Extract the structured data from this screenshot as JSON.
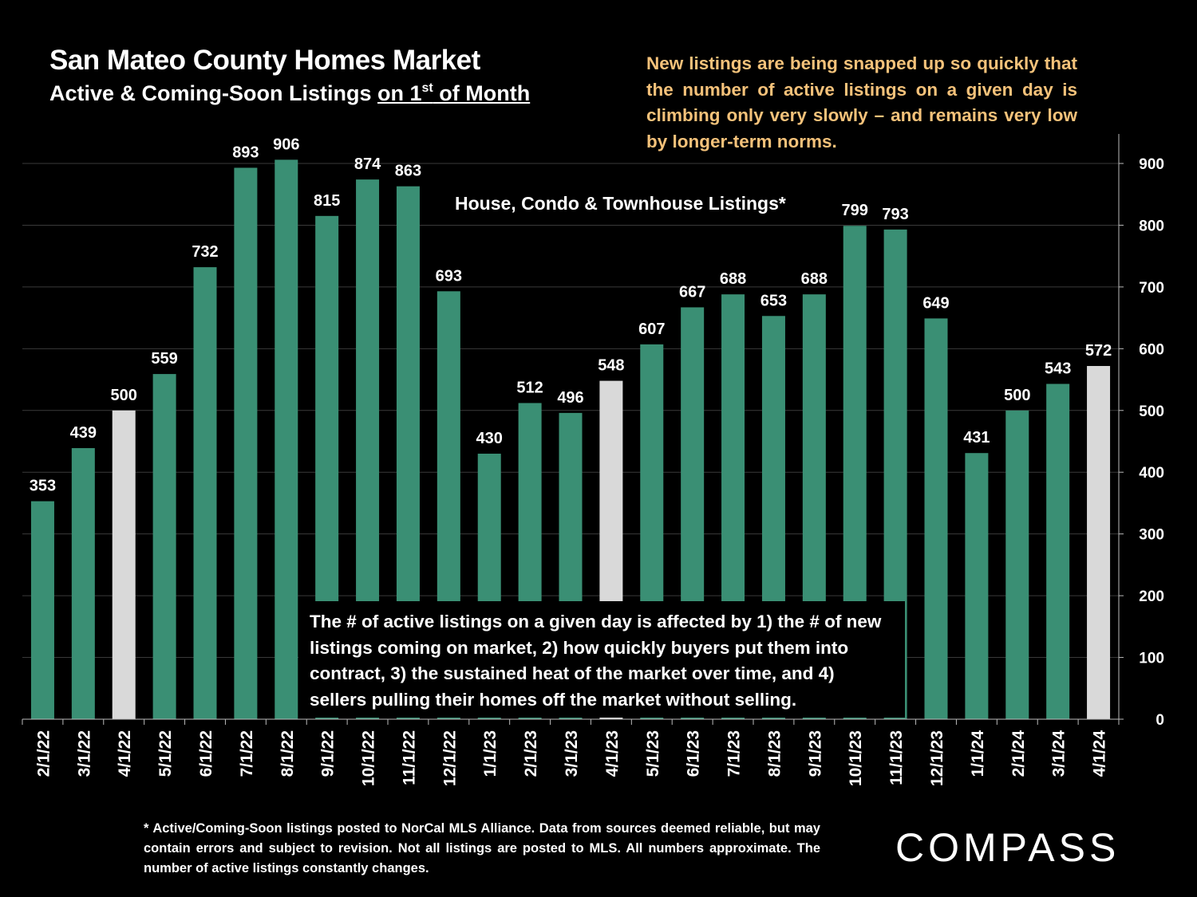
{
  "header": {
    "title": "San Mateo County Homes Market",
    "subtitle_prefix": "Active & Coming-Soon Listings ",
    "subtitle_underlined_a": "on 1",
    "subtitle_sup": "st",
    "subtitle_underlined_b": " of Month"
  },
  "notes": {
    "top_right": "New listings are being snapped up so quickly that the number of active listings on a given day is climbing only very slowly – and remains very low by longer-term norms.",
    "box": "The # of active listings on a given day is affected by 1) the # of new listings coming on market, 2) how quickly buyers put them into contract, 3) the sustained heat of the market over time, and 4) sellers pulling their homes off the market without selling.",
    "footnote": "* Active/Coming-Soon listings posted to NorCal MLS Alliance.  Data from sources deemed reliable, but may contain errors and subject to revision.  Not all listings are posted to MLS. All numbers approximate. The number of active listings constantly changes."
  },
  "logo": {
    "text": "COMPASS"
  },
  "colors": {
    "bar": "#3a8f74",
    "highlight_bar": "#d9d9d9",
    "gridline": "#3a3a3a",
    "background": "#000000",
    "note_text": "#f5c27a"
  },
  "chart_data": {
    "type": "bar",
    "series_label": "House, Condo & Townhouse Listings*",
    "categories": [
      "2/1/22",
      "3/1/22",
      "4/1/22",
      "5/1/22",
      "6/1/22",
      "7/1/22",
      "8/1/22",
      "9/1/22",
      "10/1/22",
      "11/1/22",
      "12/1/22",
      "1/1/23",
      "2/1/23",
      "3/1/23",
      "4/1/23",
      "5/1/23",
      "6/1/23",
      "7/1/23",
      "8/1/23",
      "9/1/23",
      "10/1/23",
      "11/1/23",
      "12/1/23",
      "1/1/24",
      "2/1/24",
      "3/1/24",
      "4/1/24"
    ],
    "values": [
      353,
      439,
      500,
      559,
      732,
      893,
      906,
      815,
      874,
      863,
      693,
      430,
      512,
      496,
      548,
      607,
      667,
      688,
      653,
      688,
      799,
      793,
      649,
      431,
      500,
      543,
      572
    ],
    "highlighted_categories": [
      "4/1/22",
      "4/1/23",
      "4/1/24"
    ],
    "y_axis_position": "right",
    "y_ticks": [
      0,
      100,
      200,
      300,
      400,
      500,
      600,
      700,
      800,
      900
    ],
    "ylim": [
      0,
      950
    ],
    "grid": true
  }
}
